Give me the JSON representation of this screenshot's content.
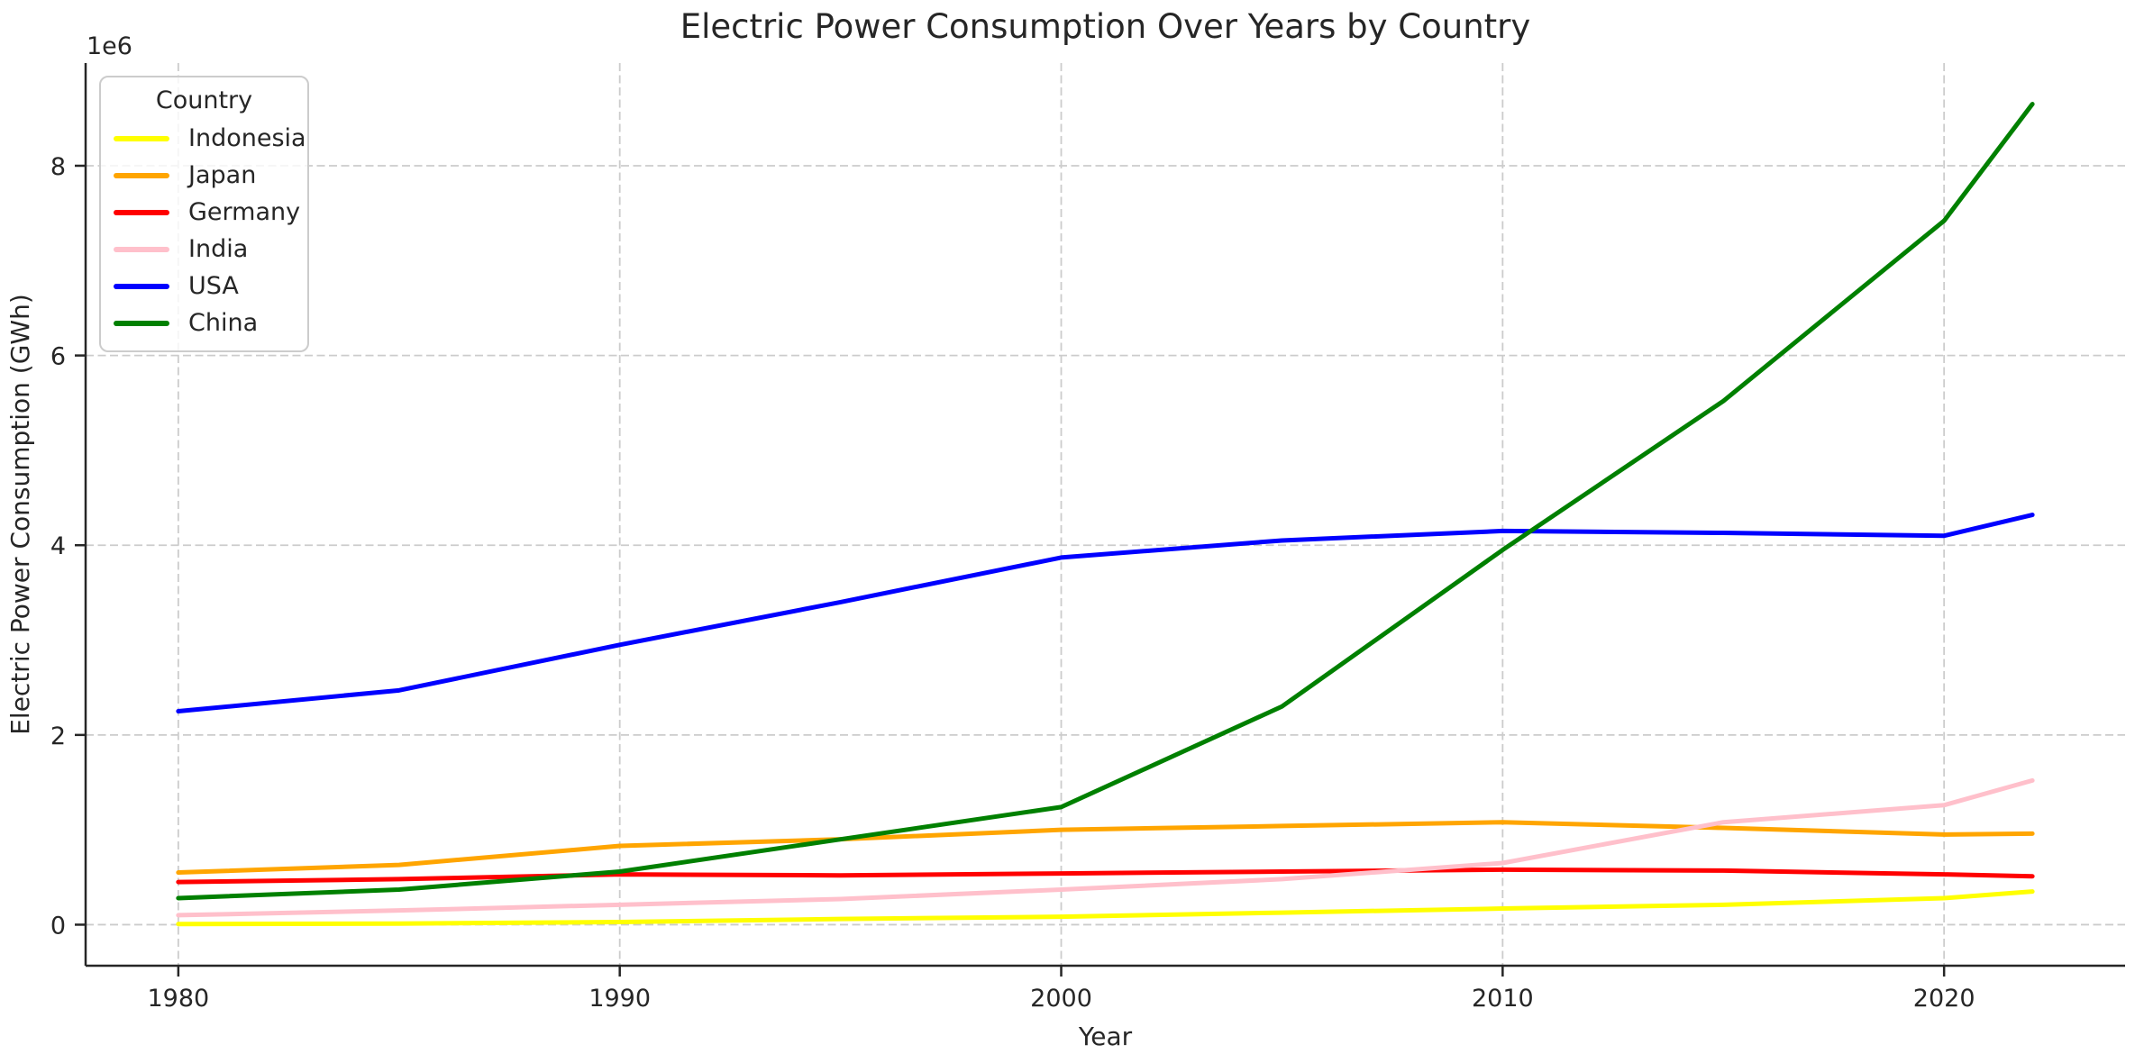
{
  "title": "Electric Power Consumption Over Years by Country",
  "axes": {
    "xlabel": "Year",
    "ylabel": "Electric Power Consumption (GWh)",
    "offset_text": "1e6",
    "x_tick_labels": [
      "1980",
      "1990",
      "2000",
      "2010",
      "2020"
    ],
    "y_tick_labels": [
      "0",
      "2",
      "4",
      "6",
      "8"
    ]
  },
  "legend": {
    "title": "Country",
    "entries": [
      "Indonesia",
      "Japan",
      "Germany",
      "India",
      "USA",
      "China"
    ]
  },
  "colors": {
    "Indonesia": "#ffff00",
    "Japan": "#ffa500",
    "Germany": "#ff0000",
    "India": "#ffc0cb",
    "USA": "#0000ff",
    "China": "#008000",
    "grid": "#cccccc",
    "spine": "#262626",
    "text": "#262626"
  },
  "chart_data": {
    "type": "line",
    "title": "Electric Power Consumption Over Years by Country",
    "xlabel": "Year",
    "ylabel": "Electric Power Consumption (GWh)",
    "x": [
      1980,
      1985,
      1990,
      1995,
      2000,
      2005,
      2010,
      2015,
      2020,
      2022
    ],
    "x_tick_values": [
      1980,
      1990,
      2000,
      2010,
      2020
    ],
    "y_tick_values": [
      0,
      2000000,
      4000000,
      6000000,
      8000000
    ],
    "y_offset_factor": 1000000,
    "xlim": [
      1977.9,
      2024.1
    ],
    "ylim": [
      -432500,
      9082500
    ],
    "grid": true,
    "grid_style": "dashed",
    "legend_position": "upper left",
    "series": [
      {
        "name": "Indonesia",
        "color": "#ffff00",
        "values": [
          7000,
          12000,
          28000,
          60000,
          84000,
          127000,
          170000,
          210000,
          280000,
          350000
        ]
      },
      {
        "name": "Japan",
        "color": "#ffa500",
        "values": [
          550000,
          630000,
          830000,
          900000,
          1000000,
          1040000,
          1080000,
          1020000,
          950000,
          960000
        ]
      },
      {
        "name": "Germany",
        "color": "#ff0000",
        "values": [
          450000,
          480000,
          530000,
          520000,
          540000,
          560000,
          580000,
          570000,
          530000,
          510000
        ]
      },
      {
        "name": "India",
        "color": "#ffc0cb",
        "values": [
          100000,
          150000,
          210000,
          270000,
          370000,
          480000,
          650000,
          1080000,
          1260000,
          1520000
        ]
      },
      {
        "name": "USA",
        "color": "#0000ff",
        "values": [
          2250000,
          2470000,
          2950000,
          3400000,
          3870000,
          4050000,
          4150000,
          4130000,
          4100000,
          4320000
        ]
      },
      {
        "name": "China",
        "color": "#008000",
        "values": [
          280000,
          370000,
          560000,
          900000,
          1240000,
          2300000,
          3950000,
          5520000,
          7420000,
          8650000
        ]
      }
    ]
  }
}
